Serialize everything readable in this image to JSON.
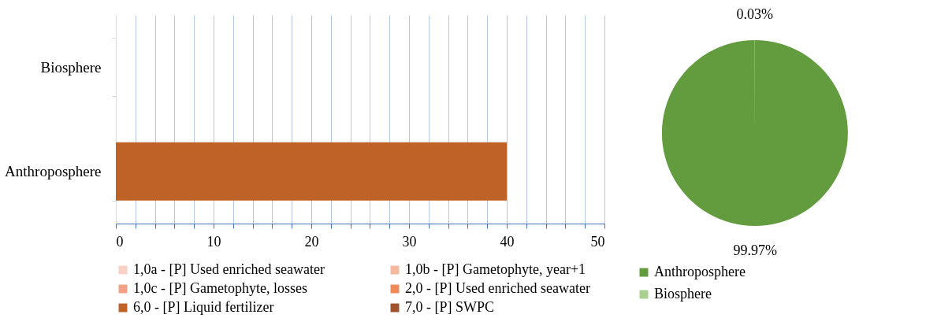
{
  "chart_data": [
    {
      "type": "bar",
      "orientation": "horizontal",
      "categories": [
        "Biosphere",
        "Anthroposphere"
      ],
      "series": [
        {
          "name": "1,0a - [P] Used enriched seawater",
          "color": "#f8d0c4",
          "values": [
            0,
            0
          ]
        },
        {
          "name": "1,0b - [P] Gametophyte, year+1",
          "color": "#f5b9a0",
          "values": [
            0,
            0
          ]
        },
        {
          "name": "1,0c - [P] Gametophyte, losses",
          "color": "#f2a185",
          "values": [
            0,
            0
          ]
        },
        {
          "name": "2,0 - [P] Used enriched seawater",
          "color": "#ef8a5a",
          "values": [
            0,
            0
          ]
        },
        {
          "name": "6,0 - [P] Liquid fertilizer",
          "color": "#bf6227",
          "values": [
            0,
            40
          ]
        },
        {
          "name": "7,0 - [P] SWPC",
          "color": "#a0522d",
          "values": [
            0,
            0
          ]
        }
      ],
      "xlim": [
        0,
        50
      ],
      "xticks": [
        0,
        {
          "value": 2,
          "label": null
        },
        {
          "value": 4,
          "label": null
        },
        {
          "value": 6,
          "label": null
        },
        {
          "value": 8,
          "label": null
        },
        10,
        {
          "value": 12,
          "label": null
        },
        {
          "value": 14,
          "label": null
        },
        {
          "value": 16,
          "label": null
        },
        {
          "value": 18,
          "label": null
        },
        20,
        {
          "value": 22,
          "label": null
        },
        {
          "value": 24,
          "label": null
        },
        {
          "value": 26,
          "label": null
        },
        {
          "value": 28,
          "label": null
        },
        30,
        {
          "value": 32,
          "label": null
        },
        {
          "value": 34,
          "label": null
        },
        {
          "value": 36,
          "label": null
        },
        {
          "value": 38,
          "label": null
        },
        40,
        {
          "value": 42,
          "label": null
        },
        {
          "value": 44,
          "label": null
        },
        {
          "value": 46,
          "label": null
        },
        {
          "value": 48,
          "label": null
        },
        50
      ],
      "grid": "x",
      "legend": "bottom"
    },
    {
      "type": "pie",
      "categories": [
        "Anthroposphere",
        "Biosphere"
      ],
      "values": [
        99.97,
        0.03
      ],
      "colors": [
        "#629c3f",
        "#a9d08e"
      ],
      "value_labels": [
        "99.97%",
        "0.03%"
      ],
      "legend": "bottom"
    }
  ]
}
